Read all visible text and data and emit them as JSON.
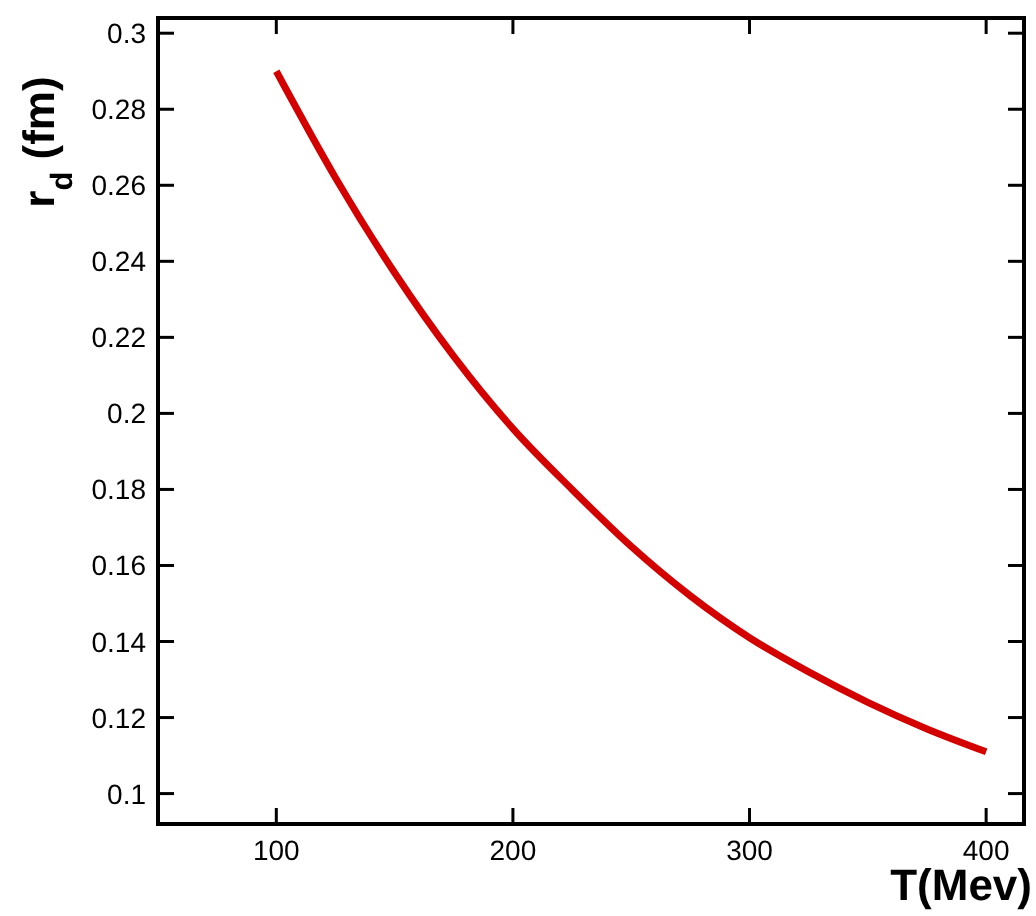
{
  "chart_data": {
    "type": "line",
    "xlabel": "T(Mev)",
    "ylabel": "r$_{d}$ (fm)",
    "x": [
      100,
      125,
      150,
      175,
      200,
      225,
      250,
      275,
      300,
      325,
      350,
      375,
      400
    ],
    "series": [
      {
        "color": "#d40000",
        "values": [
          0.29,
          0.262,
          0.237,
          0.215,
          0.196,
          0.18,
          0.165,
          0.152,
          0.141,
          0.132,
          0.124,
          0.117,
          0.111
        ]
      }
    ],
    "xlim": [
      50,
      416
    ],
    "xticks": [
      100,
      200,
      300,
      400
    ],
    "ylim": [
      0.092,
      0.304
    ],
    "yticks": [
      0.1,
      0.12,
      0.14,
      0.16,
      0.18,
      0.2,
      0.22,
      0.24,
      0.26,
      0.28,
      0.3
    ],
    "grid": false,
    "marker": "none",
    "line_style": "solid"
  }
}
